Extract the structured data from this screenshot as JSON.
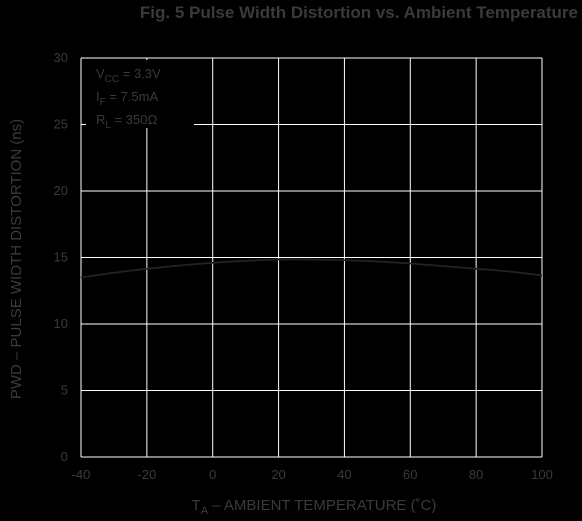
{
  "chart_data": {
    "type": "line",
    "title": "Fig. 5  Pulse Width Distortion vs. Ambient Temperature",
    "xlabel_main": "T",
    "xlabel_sub": "A",
    "xlabel_rest": " – AMBIENT TEMPERATURE (˚C)",
    "ylabel": "PWD – PULSE WIDTH DISTORTION (ns)",
    "xlim": [
      -40,
      100
    ],
    "ylim": [
      0,
      30
    ],
    "x_ticks": [
      "-40",
      "-20",
      "0",
      "20",
      "40",
      "60",
      "80",
      "100"
    ],
    "y_ticks": [
      "0",
      "5",
      "10",
      "15",
      "20",
      "25",
      "30"
    ],
    "grid": true,
    "conditions": [
      {
        "main": "V",
        "sub": "CC",
        "rest": " = 3.3V"
      },
      {
        "main": "I",
        "sub": "F",
        "rest": " = 7.5mA"
      },
      {
        "main": "R",
        "sub": "L",
        "rest": " = 350Ω"
      }
    ],
    "series": [
      {
        "x": [
          -40,
          -30,
          -20,
          -10,
          0,
          10,
          20,
          30,
          40,
          50,
          60,
          70,
          80,
          90,
          100
        ],
        "values": [
          13.5,
          13.85,
          14.15,
          14.4,
          14.6,
          14.75,
          14.85,
          14.85,
          14.8,
          14.7,
          14.55,
          14.35,
          14.15,
          13.95,
          13.65
        ]
      }
    ],
    "colors": {
      "background": "#000000",
      "grid": "#ffffff",
      "curve": "#222222",
      "text": "#3a3a3a"
    }
  }
}
